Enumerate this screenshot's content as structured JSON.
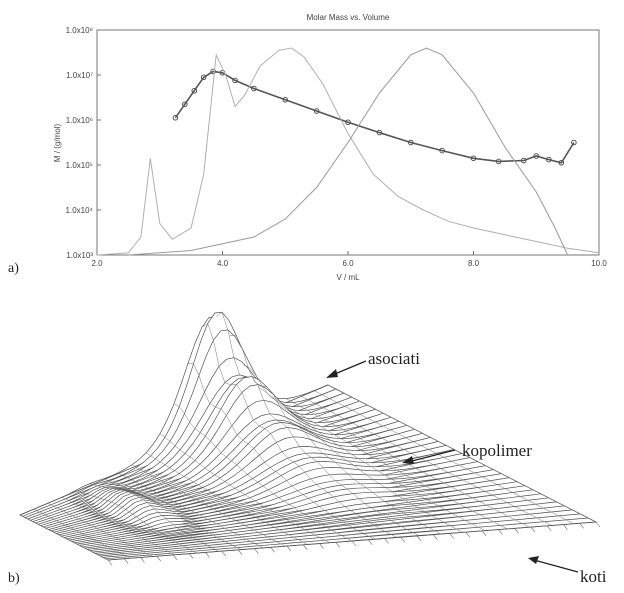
{
  "chart_data": [
    {
      "type": "line",
      "panel_label": "a)",
      "title": "Molar Mass vs. Volume",
      "xlabel": "V / mL",
      "ylabel": "M / (g/mol)",
      "x_ticks": [
        "2.0",
        "4.0",
        "6.0",
        "8.0",
        "10.0"
      ],
      "xlim": [
        2.0,
        10.0
      ],
      "y_scale": "log",
      "y_ticks": [
        "1.0x10³",
        "1.0x10⁴",
        "1.0x10⁵",
        "1.0x10⁶",
        "1.0x10⁷",
        "1.0x10⁸"
      ],
      "ylim_exponent": [
        3,
        8
      ],
      "grid": false,
      "series": [
        {
          "style": "markers",
          "x": [
            3.25,
            3.4,
            3.55,
            3.7,
            3.85,
            4.0,
            4.2,
            4.5,
            5.0,
            5.5,
            6.0,
            6.5,
            7.0,
            7.5,
            8.0,
            8.4,
            8.8,
            9.0,
            9.2,
            9.4,
            9.6
          ],
          "y_log": [
            6.05,
            6.35,
            6.65,
            6.95,
            7.08,
            7.05,
            6.88,
            6.7,
            6.45,
            6.2,
            5.95,
            5.72,
            5.5,
            5.32,
            5.15,
            5.08,
            5.1,
            5.2,
            5.12,
            5.05,
            5.5
          ]
        },
        {
          "style": "line",
          "x": [
            2.0,
            2.5,
            2.7,
            2.85,
            3.0,
            3.2,
            3.5,
            3.7,
            3.9,
            4.05,
            4.2,
            4.35,
            4.6,
            4.9,
            5.1,
            5.3,
            5.6,
            6.0,
            6.4,
            6.8,
            7.2,
            7.6,
            8.0,
            8.5,
            9.0,
            9.5,
            10.0
          ],
          "y_log": [
            3.0,
            3.05,
            3.4,
            5.15,
            3.7,
            3.35,
            3.6,
            4.8,
            7.45,
            7.0,
            6.3,
            6.55,
            7.2,
            7.55,
            7.6,
            7.4,
            6.8,
            5.7,
            4.8,
            4.3,
            4.0,
            3.75,
            3.6,
            3.45,
            3.3,
            3.15,
            3.05
          ]
        },
        {
          "style": "line",
          "x": [
            2.5,
            3.5,
            4.5,
            5.0,
            5.5,
            6.0,
            6.5,
            7.0,
            7.25,
            7.5,
            8.0,
            8.5,
            9.0,
            9.3,
            9.5
          ],
          "y_log": [
            3.0,
            3.1,
            3.4,
            3.8,
            4.5,
            5.5,
            6.6,
            7.45,
            7.6,
            7.45,
            6.6,
            5.4,
            4.4,
            3.6,
            3.0
          ]
        }
      ]
    },
    {
      "type": "3d-surface",
      "panel_label": "b)",
      "annotations": [
        "asociati",
        "kopolimer",
        "koti"
      ]
    }
  ]
}
